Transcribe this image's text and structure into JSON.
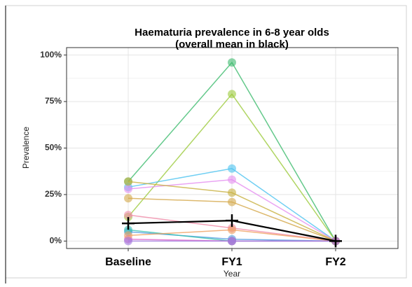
{
  "chart_data": {
    "type": "line",
    "title": "Haematuria prevalence in 6-8 year olds",
    "subtitle": "(overall mean in black)",
    "x_label": "Year",
    "y_label": "Prevalence",
    "categories": [
      "Baseline",
      "FY1",
      "FY2"
    ],
    "ylim": [
      -4,
      104
    ],
    "yticks": [
      {
        "value": 0,
        "label": "0%"
      },
      {
        "value": 25,
        "label": "25%"
      },
      {
        "value": 50,
        "label": "50%"
      },
      {
        "value": 75,
        "label": "75%"
      },
      {
        "value": 100,
        "label": "100%"
      }
    ],
    "grid": true,
    "minor_grid": true,
    "series": [
      {
        "color": "#3dbb6e",
        "values": [
          32,
          96,
          0
        ]
      },
      {
        "color": "#9ccb3c",
        "values": [
          13,
          79,
          0
        ]
      },
      {
        "color": "#4cc3f0",
        "values": [
          29,
          39,
          0
        ]
      },
      {
        "color": "#e58ff0",
        "values": [
          28,
          33,
          0
        ]
      },
      {
        "color": "#c8b040",
        "values": [
          32,
          26,
          0
        ]
      },
      {
        "color": "#d4a84a",
        "values": [
          23,
          21,
          0
        ]
      },
      {
        "color": "#f08aa8",
        "values": [
          14,
          7,
          0
        ]
      },
      {
        "color": "#4f9be0",
        "values": [
          5,
          1,
          0
        ]
      },
      {
        "color": "#38c0b0",
        "values": [
          6,
          0,
          0
        ]
      },
      {
        "color": "#e060c8",
        "values": [
          1,
          0,
          0
        ]
      },
      {
        "color": "#f0a060",
        "values": [
          3,
          6,
          0
        ]
      },
      {
        "color": "#a07be0",
        "values": [
          0,
          0,
          0
        ]
      },
      {
        "color": "#000000",
        "marker": "plus",
        "values": [
          9.5,
          11,
          0
        ]
      }
    ]
  }
}
